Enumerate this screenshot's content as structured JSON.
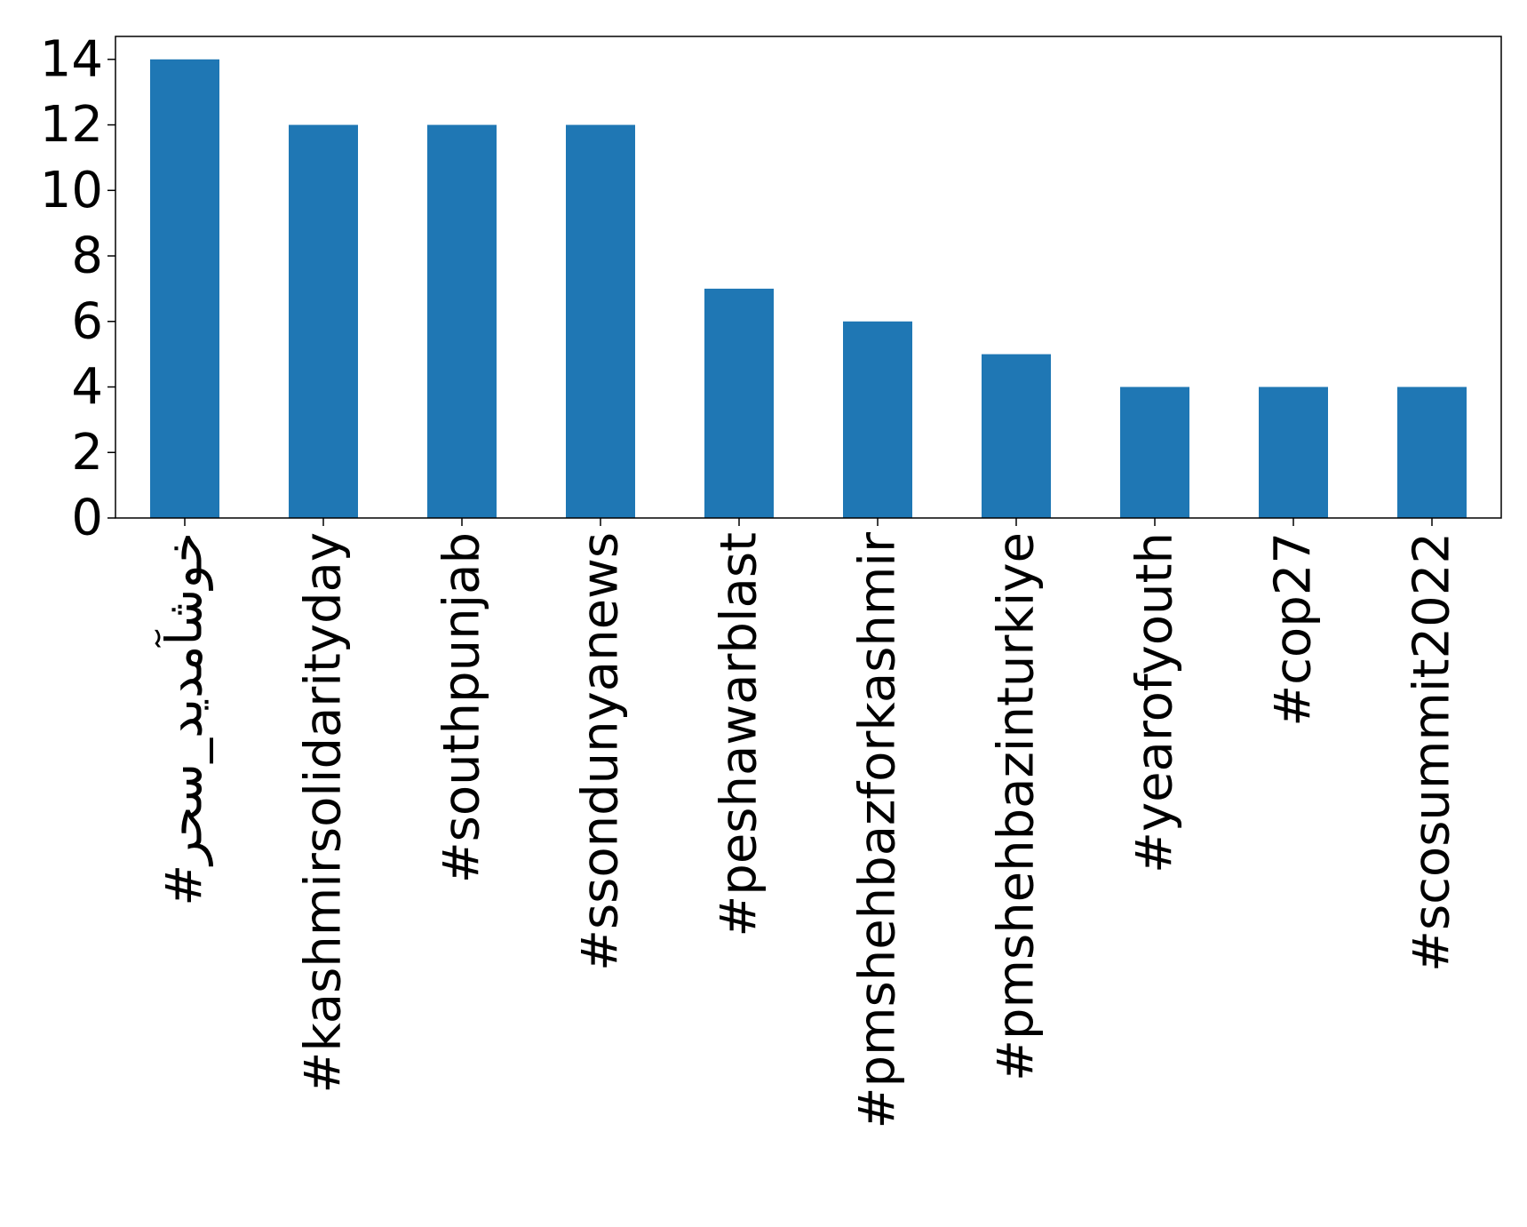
{
  "chart_data": {
    "type": "bar",
    "title": "",
    "xlabel": "",
    "ylabel": "",
    "categories": [
      "#خوشآمدید_سحر",
      "#kashmirsolidarityday",
      "#southpunjab",
      "#ssondunyanews",
      "#peshawarblast",
      "#pmshehbazforkashmir",
      "#pmshehbazinturkiye",
      "#yearofyouth",
      "#cop27",
      "#scosummit2022"
    ],
    "values": [
      14,
      12,
      12,
      12,
      7,
      6,
      5,
      4,
      4,
      4
    ],
    "ylim": [
      0,
      14.7
    ],
    "yticks": [
      0,
      2,
      4,
      6,
      8,
      10,
      12,
      14
    ],
    "bar_color": "#1f77b4",
    "grid": false,
    "legend": "none"
  }
}
